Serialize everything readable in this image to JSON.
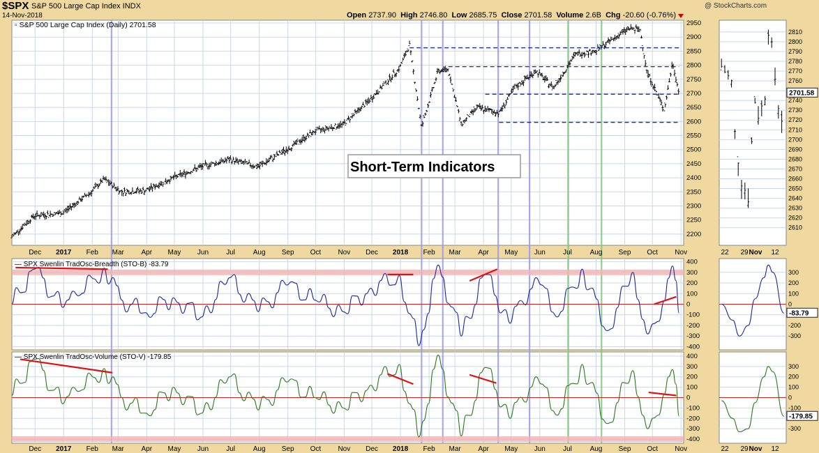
{
  "header": {
    "symbol": "$SPX",
    "name": "S&P 500 Large Cap Index  INDX",
    "date": "14-Nov-2018",
    "brand": "@ StockCharts.com",
    "quote": {
      "open_label": "Open",
      "open": "2737.90",
      "high_label": "High",
      "high": "2746.80",
      "low_label": "Low",
      "low": "2685.75",
      "close_label": "Close",
      "close": "2701.58",
      "volume_label": "Volume",
      "volume": "2.6B",
      "chg_label": "Chg",
      "chg": "-20.60 (-0.76%)"
    }
  },
  "colors": {
    "background": "#f0d9a0",
    "plot_bg": "#ffffff",
    "grid": "#c8d8ea",
    "price": "#000000",
    "breadth_line": "#1a2a99",
    "volume_line": "#2a7a1a",
    "resistance_line": "#1a2a99",
    "zero_line": "#cc2222",
    "band": "#f3b3b3",
    "annotation": "#e01010",
    "vline_blue": "#9a9af0",
    "vline_green": "#7cc87c"
  },
  "annotation_text": "Short-Term Indicators",
  "x_labels": [
    "Dec",
    "2017",
    "Feb",
    "Mar",
    "Apr",
    "May",
    "Jun",
    "Jul",
    "Aug",
    "Sep",
    "Oct",
    "Nov",
    "Dec",
    "2018",
    "Feb",
    "Mar",
    "Apr",
    "May",
    "Jun",
    "Jul",
    "Aug",
    "Sep",
    "Oct",
    "Nov"
  ],
  "zoom_x_labels": [
    "22",
    "29",
    "Nov",
    "12"
  ],
  "chart_data": [
    {
      "type": "ohlc",
      "title": "S&P 500 Large Cap Index (Daily) 2701.58",
      "last_value": "2701.58",
      "ylim": [
        2160,
        2960
      ],
      "y_ticks": [
        2200,
        2250,
        2300,
        2350,
        2400,
        2450,
        2500,
        2550,
        2600,
        2650,
        2700,
        2750,
        2800,
        2850,
        2900,
        2950
      ],
      "x": [
        "2016-11-21",
        "2016-12-15",
        "2017-01-15",
        "2017-02-15",
        "2017-03-01",
        "2017-03-20",
        "2017-04-15",
        "2017-05-15",
        "2017-06-15",
        "2017-07-15",
        "2017-08-15",
        "2017-09-15",
        "2017-10-15",
        "2017-11-15",
        "2017-12-15",
        "2018-01-15",
        "2018-01-26",
        "2018-02-08",
        "2018-02-26",
        "2018-03-09",
        "2018-03-23",
        "2018-04-09",
        "2018-05-03",
        "2018-05-20",
        "2018-06-12",
        "2018-07-01",
        "2018-07-25",
        "2018-08-15",
        "2018-09-20",
        "2018-10-03",
        "2018-10-10",
        "2018-10-29",
        "2018-11-07",
        "2018-11-14"
      ],
      "close": [
        2190,
        2265,
        2275,
        2350,
        2395,
        2350,
        2355,
        2400,
        2440,
        2465,
        2440,
        2500,
        2565,
        2590,
        2680,
        2790,
        2872,
        2580,
        2780,
        2786,
        2590,
        2650,
        2630,
        2720,
        2780,
        2720,
        2840,
        2850,
        2930,
        2925,
        2780,
        2640,
        2810,
        2701
      ],
      "resistance_lines": [
        {
          "from": "2018-01-26",
          "to": "2018-11-14",
          "y": 2862
        },
        {
          "from": "2018-03-09",
          "to": "2018-11-14",
          "y": 2795
        },
        {
          "from": "2018-04-18",
          "to": "2018-11-14",
          "y": 2697
        },
        {
          "from": "2018-05-03",
          "to": "2018-11-14",
          "y": 2597
        }
      ]
    },
    {
      "type": "line",
      "title": "SPX Swenlin TradOsc-Breadth (STO-B) -83.79",
      "last_value": "-83.79",
      "ylim": [
        -430,
        430
      ],
      "y_ticks": [
        -400,
        -300,
        -200,
        -100,
        0,
        100,
        200,
        300,
        400
      ],
      "x": [
        "2016-11-21",
        "2016-12-15",
        "2017-01-15",
        "2017-02-01",
        "2017-03-01",
        "2017-03-20",
        "2017-04-15",
        "2017-05-15",
        "2017-06-15",
        "2017-07-15",
        "2017-08-15",
        "2017-09-15",
        "2017-10-15",
        "2017-11-15",
        "2017-12-15",
        "2018-01-15",
        "2018-02-05",
        "2018-02-26",
        "2018-03-23",
        "2018-04-18",
        "2018-05-15",
        "2018-06-12",
        "2018-07-05",
        "2018-08-01",
        "2018-08-28",
        "2018-09-25",
        "2018-10-11",
        "2018-10-29",
        "2018-11-07",
        "2018-11-14"
      ],
      "values": [
        0,
        330,
        -30,
        80,
        340,
        40,
        -80,
        60,
        -120,
        250,
        -70,
        180,
        40,
        -70,
        150,
        270,
        -390,
        370,
        -300,
        280,
        -180,
        250,
        -120,
        330,
        -250,
        300,
        -280,
        30,
        360,
        -84
      ],
      "bands": [
        300,
        0
      ],
      "trendlines": [
        {
          "from": [
            "2016-11-25",
            345
          ],
          "to": [
            "2017-03-05",
            330
          ]
        },
        {
          "from": [
            "2018-01-02",
            280
          ],
          "to": [
            "2018-01-30",
            280
          ]
        },
        {
          "from": [
            "2018-04-01",
            220
          ],
          "to": [
            "2018-05-01",
            330
          ]
        },
        {
          "from": [
            "2018-10-18",
            0
          ],
          "to": [
            "2018-11-11",
            70
          ]
        }
      ]
    },
    {
      "type": "line",
      "title": "SPX Swenlin TradOsc-Volume (STO-V) -179.85",
      "last_value": "-179.85",
      "ylim": [
        -440,
        440
      ],
      "y_ticks": [
        -400,
        -300,
        -200,
        -100,
        0,
        100,
        200,
        300,
        400
      ],
      "x": [
        "2016-11-21",
        "2016-12-15",
        "2017-01-15",
        "2017-02-01",
        "2017-03-01",
        "2017-03-20",
        "2017-04-15",
        "2017-05-15",
        "2017-06-15",
        "2017-07-15",
        "2017-08-15",
        "2017-09-15",
        "2017-10-15",
        "2017-11-15",
        "2017-12-15",
        "2018-01-15",
        "2018-02-05",
        "2018-02-26",
        "2018-03-23",
        "2018-04-18",
        "2018-05-15",
        "2018-06-12",
        "2018-07-05",
        "2018-08-01",
        "2018-08-28",
        "2018-09-25",
        "2018-10-11",
        "2018-10-29",
        "2018-11-07",
        "2018-11-14"
      ],
      "values": [
        20,
        370,
        -60,
        60,
        280,
        0,
        -150,
        100,
        -150,
        200,
        -120,
        150,
        0,
        -100,
        120,
        320,
        -380,
        410,
        -370,
        290,
        -200,
        200,
        -170,
        320,
        -250,
        260,
        -300,
        30,
        270,
        -180
      ],
      "bands": [
        -400,
        0
      ],
      "trendlines": [
        {
          "from": [
            "2016-11-30",
            370
          ],
          "to": [
            "2017-03-10",
            240
          ]
        },
        {
          "from": [
            "2018-01-02",
            230
          ],
          "to": [
            "2018-01-30",
            130
          ]
        },
        {
          "from": [
            "2018-04-01",
            220
          ],
          "to": [
            "2018-04-30",
            140
          ]
        },
        {
          "from": [
            "2018-10-12",
            50
          ],
          "to": [
            "2018-11-11",
            20
          ]
        }
      ]
    },
    {
      "type": "ohlc",
      "title": "",
      "ylim": [
        2592,
        2822
      ],
      "y_ticks": [
        2610,
        2620,
        2630,
        2640,
        2650,
        2660,
        2670,
        2680,
        2690,
        2700,
        2710,
        2720,
        2730,
        2740,
        2750,
        2760,
        2770,
        2780,
        2790,
        2800,
        2810
      ],
      "x": [
        "2018-10-17",
        "2018-10-19",
        "2018-10-22",
        "2018-10-24",
        "2018-10-25",
        "2018-10-26",
        "2018-10-29",
        "2018-10-30",
        "2018-10-31",
        "2018-11-01",
        "2018-11-02",
        "2018-11-05",
        "2018-11-06",
        "2018-11-07",
        "2018-11-08",
        "2018-11-09",
        "2018-11-12",
        "2018-11-13",
        "2018-11-14"
      ],
      "close": [
        2775,
        2768,
        2756,
        2656,
        2705,
        2658,
        2641,
        2682,
        2712,
        2740,
        2723,
        2738,
        2755,
        2813,
        2806,
        2781,
        2726,
        2722,
        2702
      ]
    },
    {
      "type": "line",
      "title": "",
      "ylim": [
        -430,
        430
      ],
      "y_ticks": [
        -300,
        -200,
        -100,
        0,
        100,
        200,
        300
      ],
      "x": [
        "2018-10-17",
        "2018-10-22",
        "2018-10-25",
        "2018-10-29",
        "2018-11-01",
        "2018-11-05",
        "2018-11-07",
        "2018-11-09",
        "2018-11-14"
      ],
      "values": [
        0,
        -150,
        -300,
        -200,
        50,
        250,
        370,
        300,
        -84
      ]
    },
    {
      "type": "line",
      "title": "",
      "ylim": [
        -440,
        440
      ],
      "y_ticks": [
        -300,
        -200,
        -100,
        0,
        100,
        200,
        300
      ],
      "x": [
        "2018-10-17",
        "2018-10-22",
        "2018-10-25",
        "2018-10-29",
        "2018-11-01",
        "2018-11-05",
        "2018-11-07",
        "2018-11-09",
        "2018-11-14"
      ],
      "values": [
        -30,
        -200,
        -330,
        -300,
        -50,
        200,
        300,
        250,
        -180
      ]
    }
  ]
}
